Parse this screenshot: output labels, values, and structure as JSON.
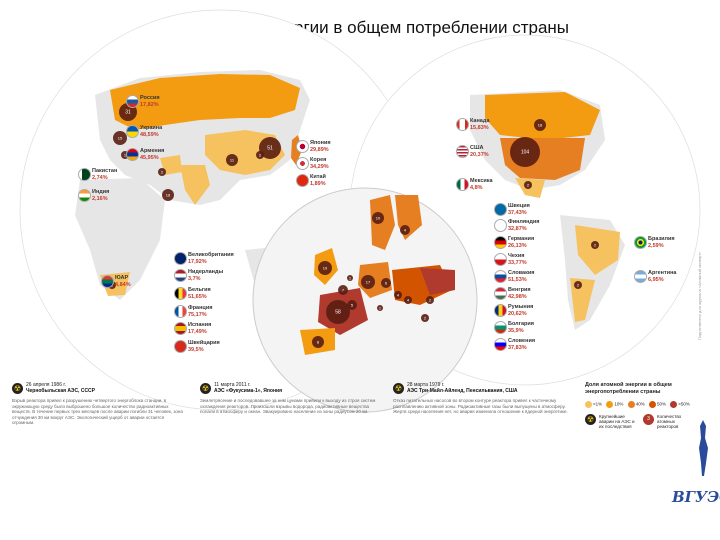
{
  "title": "Доля атомной энергии в общем потреблении страны",
  "colors": {
    "ocean": "#ffffff",
    "land": "#e6e6e6",
    "very_low": "#f6c25f",
    "low": "#f39c12",
    "mid": "#e67e22",
    "high": "#d35400",
    "very_high": "#b03a2e",
    "plant": "#5a1e12"
  },
  "countries": [
    {
      "name": "Россия",
      "value": "17,82%",
      "flag": "flag-russia"
    },
    {
      "name": "Украина",
      "value": "48,59%",
      "flag": "flag-ukraine"
    },
    {
      "name": "Армения",
      "value": "45,95%",
      "flag": "flag-armenia"
    },
    {
      "name": "Пакистан",
      "value": "2,74%",
      "flag": "flag-pakistan"
    },
    {
      "name": "Индия",
      "value": "2,16%",
      "flag": "flag-india"
    },
    {
      "name": "Япония",
      "value": "29,89%",
      "flag": "flag-japan"
    },
    {
      "name": "Корея",
      "value": "34,29%",
      "flag": "flag-korea"
    },
    {
      "name": "Китай",
      "value": "1,89%",
      "flag": "flag-china"
    },
    {
      "name": "Канада",
      "value": "15,83%",
      "flag": "flag-canada"
    },
    {
      "name": "США",
      "value": "20,37%",
      "flag": "flag-usa"
    },
    {
      "name": "Мексика",
      "value": "4,8%",
      "flag": "flag-mexico"
    },
    {
      "name": "ЮАР",
      "value": "4,84%",
      "flag": "flag-south-africa"
    },
    {
      "name": "Великобритания",
      "value": "17,92%",
      "flag": "flag-uk"
    },
    {
      "name": "Нидерланды",
      "value": "3,7%",
      "flag": "flag-netherlands"
    },
    {
      "name": "Бельгия",
      "value": "51,65%",
      "flag": "flag-belgium"
    },
    {
      "name": "Франция",
      "value": "75,17%",
      "flag": "flag-france"
    },
    {
      "name": "Испания",
      "value": "17,49%",
      "flag": "flag-spain"
    },
    {
      "name": "Швейцария",
      "value": "39,5%",
      "flag": "flag-switzerland"
    },
    {
      "name": "Швеция",
      "value": "37,43%",
      "flag": "flag-sweden"
    },
    {
      "name": "Финляндия",
      "value": "32,87%",
      "flag": "flag-finland"
    },
    {
      "name": "Германия",
      "value": "26,13%",
      "flag": "flag-germany"
    },
    {
      "name": "Чехия",
      "value": "33,77%",
      "flag": "flag-czechia"
    },
    {
      "name": "Словакия",
      "value": "51,53%",
      "flag": "flag-slovakia"
    },
    {
      "name": "Венгрия",
      "value": "42,98%",
      "flag": "flag-hungary"
    },
    {
      "name": "Румыния",
      "value": "20,62%",
      "flag": "flag-romania"
    },
    {
      "name": "Болгария",
      "value": "35,9%",
      "flag": "flag-bulgaria"
    },
    {
      "name": "Словения",
      "value": "37,83%",
      "flag": "flag-slovenia"
    },
    {
      "name": "Бразилия",
      "value": "2,59%",
      "flag": "flag-brazil"
    },
    {
      "name": "Аргентина",
      "value": "6,95%",
      "flag": "flag-argentina"
    }
  ],
  "plant_counts": {
    "russia_west": "31",
    "russia_ukraine": "15",
    "armenia": "1",
    "india": "18",
    "china_a": "11",
    "china_b": "2",
    "japan": "51",
    "pakistan": "2",
    "south_africa": "2",
    "canada": "18",
    "usa": "104",
    "mexico": "2",
    "brazil": "2",
    "argentina": "2",
    "sweden": "10",
    "finland": "4",
    "uk": "19",
    "france": "58",
    "germany": "17",
    "spain": "8",
    "belgium": "7",
    "czechia": "6",
    "switzerland": "5",
    "slovakia": "4",
    "hungary": "4",
    "romania": "2",
    "bulgaria": "2",
    "slovenia": "1",
    "netherlands": "1"
  },
  "accidents": [
    {
      "date": "26 апреля 1986 г.",
      "name": "Чернобыльская АЭС, СССР",
      "text": "Взрыв реактора привел к разрушению четвертого энергоблока станции, в окружающую среду было выброшено большое количество радиоактивных веществ. В течение первых трех месяцев после аварии погибли 31 человек, зона отчуждения 30 км вокруг АЭС. Экологический ущерб от аварии остается огромным."
    },
    {
      "date": "11 марта 2011 г.",
      "name": "АЭС «Фукусима-1», Япония",
      "text": "Землетрясение и последовавшее за ним цунами привели к выходу из строя систем охлаждения реакторов. Произошли взрывы водорода, радиоактивные вещества попали в атмосферу и океан. Эвакуировано население из зоны радиусом 20 км."
    },
    {
      "date": "28 марта 1979 г.",
      "name": "АЭС Три-Майл-Айленд, Пенсильвания, США",
      "text": "Отказ питательных насосов во втором контуре реактора привел к частичному расплавлению активной зоны. Радиоактивные газы были выпущены в атмосферу. Жертв среди населения нет, но авария изменила отношение к ядерной энергетике."
    }
  ],
  "legend": {
    "title": "Доля атомной энергии в общем энергопотреблении страны",
    "bins": [
      "<1%",
      "10%",
      "40%",
      "50%",
      ">50%"
    ],
    "icon1": "Крупнейшие аварии на АЭС и их последствия",
    "icon2": "Количество атомных реакторов"
  },
  "credit": "Подготовлено для журнала «Атомный эксперт»",
  "logo": "ВГУЭС"
}
